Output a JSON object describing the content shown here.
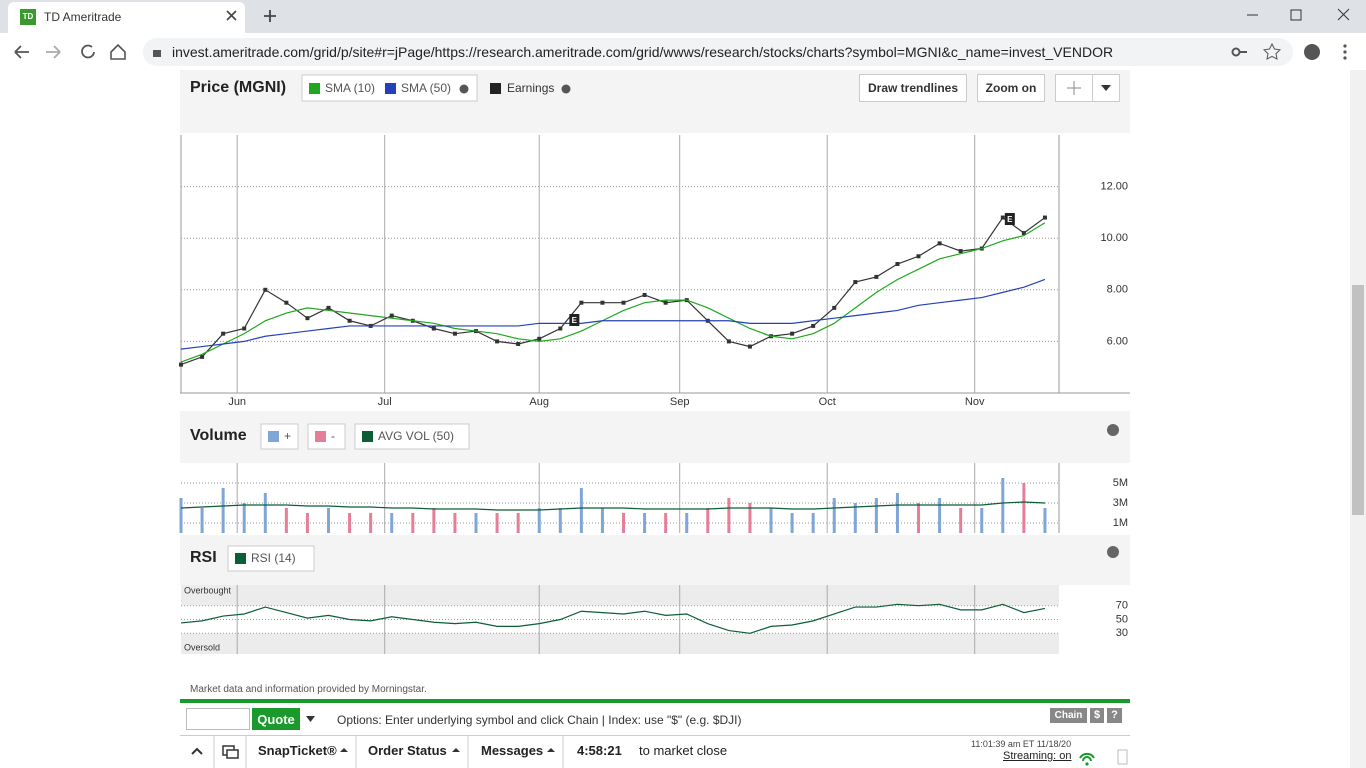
{
  "browser": {
    "tab_title": "TD Ameritrade",
    "url": "invest.ameritrade.com/grid/p/site#r=jPage/https://research.ameritrade.com/grid/wwws/research/stocks/charts?symbol=MGNI&c_name=invest_VENDOR"
  },
  "toolbar": {
    "buttons": [
      "Draw trendlines",
      "Zoom on"
    ]
  },
  "chart_data": [
    {
      "type": "line",
      "title": "Price (MGNI)",
      "earnings_label": "Earnings",
      "x": [
        0,
        3,
        6,
        9,
        12,
        15,
        18,
        21,
        24,
        27,
        30,
        33,
        36,
        39,
        42,
        45,
        48,
        51,
        54,
        57,
        60,
        63,
        66,
        69,
        72,
        75,
        78,
        81,
        84,
        87,
        90,
        93,
        96,
        99,
        102,
        105,
        108,
        111,
        114,
        117,
        120,
        123
      ],
      "values": [
        5.1,
        5.4,
        6.3,
        6.5,
        8.0,
        7.5,
        6.9,
        7.3,
        6.8,
        6.6,
        7.0,
        6.8,
        6.5,
        6.3,
        6.4,
        6.0,
        5.9,
        6.1,
        6.5,
        7.5,
        7.5,
        7.5,
        7.8,
        7.5,
        7.6,
        6.8,
        6.0,
        5.8,
        6.2,
        6.3,
        6.6,
        7.3,
        8.3,
        8.5,
        9.0,
        9.3,
        9.8,
        9.5,
        9.6,
        10.8,
        10.2,
        10.8
      ],
      "color": "#333333",
      "series": [
        {
          "name": "SMA (10)",
          "color": "#1fa81f",
          "values": [
            5.2,
            5.5,
            5.9,
            6.3,
            6.8,
            7.1,
            7.3,
            7.2,
            7.1,
            7.0,
            6.9,
            6.8,
            6.7,
            6.5,
            6.4,
            6.3,
            6.1,
            6.0,
            6.1,
            6.4,
            6.8,
            7.2,
            7.5,
            7.6,
            7.6,
            7.3,
            6.9,
            6.5,
            6.2,
            6.1,
            6.3,
            6.7,
            7.3,
            7.9,
            8.4,
            8.8,
            9.2,
            9.4,
            9.6,
            9.9,
            10.1,
            10.6
          ]
        },
        {
          "name": "SMA (50)",
          "color": "#2442b8",
          "values": [
            5.7,
            5.8,
            5.9,
            6.0,
            6.2,
            6.3,
            6.4,
            6.5,
            6.6,
            6.6,
            6.6,
            6.6,
            6.6,
            6.6,
            6.6,
            6.6,
            6.6,
            6.7,
            6.7,
            6.7,
            6.8,
            6.8,
            6.8,
            6.8,
            6.8,
            6.8,
            6.8,
            6.7,
            6.7,
            6.7,
            6.8,
            6.9,
            7.0,
            7.1,
            7.2,
            7.4,
            7.5,
            7.6,
            7.7,
            7.9,
            8.1,
            8.4
          ]
        }
      ],
      "earnings": [
        {
          "x": 56,
          "label": "E"
        },
        {
          "x": 118,
          "label": "E"
        }
      ],
      "xlim": [
        0,
        125
      ],
      "xticks": [
        {
          "value": 8,
          "label": "Jun"
        },
        {
          "value": 29,
          "label": "Jul"
        },
        {
          "value": 51,
          "label": "Aug"
        },
        {
          "value": 71,
          "label": "Sep"
        },
        {
          "value": 92,
          "label": "Oct"
        },
        {
          "value": 113,
          "label": "Nov"
        }
      ],
      "ylim": [
        4,
        14
      ],
      "yticks": [
        {
          "value": 12,
          "label": "12.00"
        },
        {
          "value": 10,
          "label": "10.00"
        },
        {
          "value": 8,
          "label": "8.00"
        },
        {
          "value": 6,
          "label": "6.00"
        }
      ],
      "grid": true
    },
    {
      "type": "bar",
      "title": "Volume",
      "x": [
        0,
        3,
        6,
        9,
        12,
        15,
        18,
        21,
        24,
        27,
        30,
        33,
        36,
        39,
        42,
        45,
        48,
        51,
        54,
        57,
        60,
        63,
        66,
        69,
        72,
        75,
        78,
        81,
        84,
        87,
        90,
        93,
        96,
        99,
        102,
        105,
        108,
        111,
        114,
        117,
        120,
        123
      ],
      "series": [
        {
          "name": "+",
          "color": "#7fa6d6",
          "type": "bar",
          "values": [
            3.5,
            2.5,
            4.5,
            3.0,
            4.0,
            null,
            null,
            2.5,
            null,
            null,
            2.0,
            null,
            null,
            null,
            2.0,
            null,
            null,
            2.5,
            2.5,
            4.5,
            2.5,
            null,
            2.0,
            null,
            2.0,
            null,
            null,
            null,
            2.5,
            2.0,
            2.0,
            3.5,
            3.0,
            3.5,
            4.0,
            null,
            3.5,
            null,
            2.5,
            5.5,
            null,
            2.5
          ]
        },
        {
          "name": "-",
          "color": "#e67e98",
          "type": "bar",
          "values": [
            null,
            null,
            null,
            null,
            null,
            2.5,
            2.0,
            null,
            2.0,
            2.0,
            null,
            2.0,
            2.5,
            2.0,
            null,
            2.0,
            2.0,
            null,
            null,
            null,
            null,
            2.0,
            null,
            2.0,
            null,
            2.5,
            3.5,
            3.0,
            null,
            null,
            null,
            null,
            null,
            null,
            null,
            3.0,
            null,
            2.5,
            null,
            null,
            5.0,
            null
          ]
        },
        {
          "name": "AVG VOL (50)",
          "color": "#0b5e36",
          "type": "line",
          "values": [
            2.5,
            2.6,
            2.7,
            2.8,
            2.8,
            2.8,
            2.7,
            2.7,
            2.6,
            2.6,
            2.5,
            2.5,
            2.4,
            2.4,
            2.4,
            2.3,
            2.3,
            2.3,
            2.4,
            2.5,
            2.5,
            2.5,
            2.4,
            2.4,
            2.4,
            2.4,
            2.5,
            2.5,
            2.5,
            2.4,
            2.4,
            2.5,
            2.6,
            2.7,
            2.8,
            2.8,
            2.8,
            2.8,
            2.8,
            3.0,
            3.1,
            3.0
          ]
        }
      ],
      "xlim": [
        0,
        125
      ],
      "ylim": [
        0,
        7
      ],
      "yticks": [
        {
          "value": 5,
          "label": "5M"
        },
        {
          "value": 3,
          "label": "3M"
        },
        {
          "value": 1,
          "label": "1M"
        }
      ],
      "grid": true
    },
    {
      "type": "line",
      "title": "RSI",
      "x": [
        0,
        3,
        6,
        9,
        12,
        15,
        18,
        21,
        24,
        27,
        30,
        33,
        36,
        39,
        42,
        45,
        48,
        51,
        54,
        57,
        60,
        63,
        66,
        69,
        72,
        75,
        78,
        81,
        84,
        87,
        90,
        93,
        96,
        99,
        102,
        105,
        108,
        111,
        114,
        117,
        120,
        123
      ],
      "series": [
        {
          "name": "RSI (14)",
          "color": "#0b5e36",
          "values": [
            45,
            48,
            55,
            58,
            68,
            60,
            52,
            56,
            50,
            48,
            54,
            50,
            46,
            44,
            46,
            40,
            40,
            44,
            50,
            62,
            60,
            58,
            62,
            56,
            58,
            44,
            34,
            30,
            40,
            42,
            48,
            58,
            68,
            68,
            72,
            70,
            72,
            64,
            64,
            72,
            60,
            66
          ]
        }
      ],
      "annotations": [
        "Overbought",
        "Oversold"
      ],
      "xlim": [
        0,
        125
      ],
      "ylim": [
        0,
        100
      ],
      "yticks": [
        70,
        50,
        30
      ],
      "grid": true
    }
  ],
  "footer": {
    "credit": "Market data and information provided by Morningstar.",
    "quote_button": "Quote",
    "options_hint": "Options: Enter underlying symbol and click Chain | Index: use \"$\" (e.g. $DJI)",
    "chain_button": "Chain",
    "dollar_button": "$",
    "help_button": "?",
    "tabs": [
      "SnapTicket®",
      "Order Status",
      "Messages"
    ],
    "countdown": "4:58:21",
    "countdown_suffix": "to market close",
    "timestamp": "11:01:39 am ET 11/18/20",
    "streaming": "Streaming: on"
  }
}
